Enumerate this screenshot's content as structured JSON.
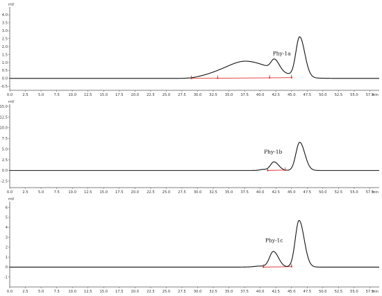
{
  "figure": {
    "colors": {
      "trace": "#111111",
      "integration_baseline": "#e03030",
      "axis": "#555555"
    }
  },
  "chart_data": [
    {
      "type": "line",
      "y_unit": "mV",
      "x_unit": "min",
      "xlim": [
        0,
        59
      ],
      "ylim": [
        -0.75,
        4.5
      ],
      "x_ticks": [
        "0.0",
        "2.5",
        "5.0",
        "7.5",
        "10.0",
        "12.5",
        "15.0",
        "17.5",
        "20.0",
        "22.5",
        "25.0",
        "27.5",
        "30.0",
        "32.5",
        "35.0",
        "37.5",
        "40.0",
        "42.5",
        "45.0",
        "47.5",
        "50.0",
        "52.5",
        "55.0",
        "57.5"
      ],
      "y_ticks": [
        "-0.5",
        "0.0",
        "0.5",
        "1.0",
        "1.5",
        "2.0",
        "2.5",
        "3.0",
        "3.5",
        "4.0"
      ],
      "peak_label": "Phy-1a",
      "label_at": [
        42.0,
        1.45
      ],
      "baseline": 0.0,
      "peaks": [
        {
          "rt": 31.3,
          "height": 0.07,
          "width": 1.4
        },
        {
          "rt": 34.0,
          "height": 0.2,
          "width": 2.2
        },
        {
          "rt": 38.0,
          "height": 1.0,
          "width": 3.0
        },
        {
          "rt": 42.3,
          "height": 0.65,
          "width": 0.55
        },
        {
          "rt": 46.3,
          "height": 2.5,
          "width": 0.6
        }
      ],
      "integration": [
        [
          29.0,
          0.0
        ],
        [
          45.0,
          0.05
        ]
      ],
      "markers": [
        29.0,
        33.2,
        41.5,
        45.0
      ]
    },
    {
      "type": "line",
      "y_unit": "mV",
      "x_unit": "min",
      "xlim": [
        0,
        59
      ],
      "ylim": [
        -4.0,
        15.5
      ],
      "x_ticks": [
        "0.0",
        "2.5",
        "5.0",
        "7.5",
        "10.0",
        "12.5",
        "15.0",
        "17.5",
        "20.0",
        "22.5",
        "25.0",
        "27.5",
        "30.0",
        "32.5",
        "35.0",
        "37.5",
        "40.0",
        "42.5",
        "45.0",
        "47.5",
        "50.0",
        "52.5",
        "55.0",
        "57.5"
      ],
      "y_ticks": [
        "-2.5",
        "0.0",
        "2.5",
        "5.0",
        "7.5",
        "10.0",
        "12.5",
        "15.0"
      ],
      "peak_label": "Phy-1b",
      "label_at": [
        40.6,
        4.0
      ],
      "baseline": 0.0,
      "peaks": [
        {
          "rt": 40.5,
          "height": 0.25,
          "width": 0.6
        },
        {
          "rt": 42.2,
          "height": 2.0,
          "width": 0.55
        },
        {
          "rt": 46.3,
          "height": 6.6,
          "width": 0.6
        }
      ],
      "integration": [
        [
          41.2,
          0.0
        ],
        [
          44.0,
          0.1
        ]
      ],
      "markers": [
        41.2,
        44.0
      ]
    },
    {
      "type": "line",
      "y_unit": "mV",
      "x_unit": "min",
      "xlim": [
        0,
        59
      ],
      "ylim": [
        -2.0,
        6.6
      ],
      "x_ticks": [
        "0.0",
        "2.5",
        "5.0",
        "7.5",
        "10.0",
        "12.5",
        "15.0",
        "17.5",
        "20.0",
        "22.5",
        "25.0",
        "27.5",
        "30.0",
        "32.5",
        "35.0",
        "37.5",
        "40.0",
        "42.5",
        "45.0",
        "47.5",
        "50.0",
        "52.5",
        "55.0",
        "57.5"
      ],
      "y_ticks": [
        "-1",
        "0",
        "1",
        "2",
        "3",
        "4",
        "5",
        "6"
      ],
      "peak_label": "Phy-1c",
      "label_at": [
        40.8,
        2.5
      ],
      "baseline": 0.0,
      "peaks": [
        {
          "rt": 40.0,
          "height": 0.1,
          "width": 1.0
        },
        {
          "rt": 42.1,
          "height": 1.55,
          "width": 0.6
        },
        {
          "rt": 46.2,
          "height": 4.7,
          "width": 0.6
        }
      ],
      "integration": [
        [
          40.5,
          0.0
        ],
        [
          45.0,
          0.05
        ]
      ],
      "markers": [
        40.5,
        45.0
      ]
    }
  ]
}
